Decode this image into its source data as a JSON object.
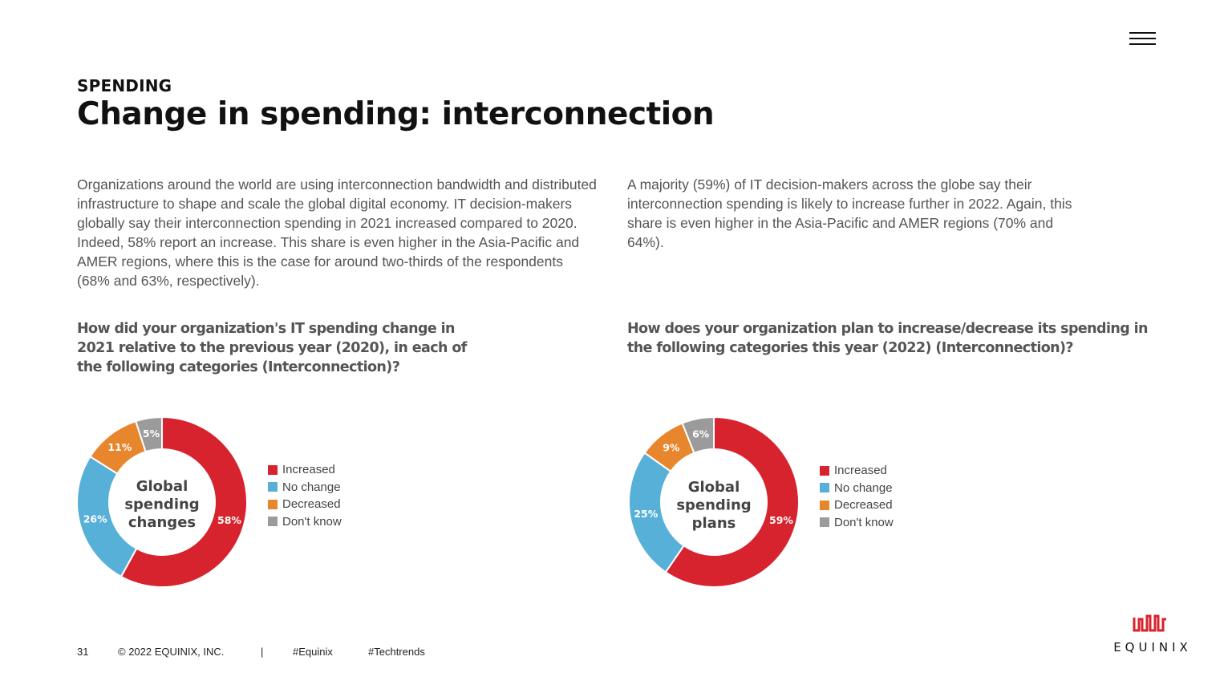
{
  "header": {
    "kicker": "SPENDING",
    "title": "Change in spending: interconnection",
    "menu_icon": "hamburger-icon"
  },
  "paragraphs": [
    "Organizations around the world are using interconnection bandwidth and distributed infrastructure to shape and scale the global digital economy. IT decision-makers globally say their interconnection spending in 2021 increased compared to 2020. Indeed, 58% report an increase. This share is even higher in the Asia-Pacific and AMER regions, where this is the case for around two-thirds of the respondents (68% and 63%, respectively).",
    "A majority (59%) of IT decision-makers across the globe say their interconnection spending is likely to increase further in 2022. Again, this share is even higher in the Asia-Pacific and AMER regions (70% and 64%)."
  ],
  "questions": [
    "How did your organization's IT spending change in 2021 relative to the previous year (2020), in each of the following categories (Interconnection)?",
    "How does your organization plan to increase/decrease its spending in the following categories this year (2022) (Interconnection)?"
  ],
  "colors": {
    "Increased": "#d7232e",
    "No change": "#57b0d8",
    "Decreased": "#e8862d",
    "Don't know": "#9b9b9b"
  },
  "chart_data": [
    {
      "type": "pie",
      "subtype": "donut",
      "title": "Global spending changes",
      "categories": [
        "Increased",
        "No change",
        "Decreased",
        "Don't know"
      ],
      "values": [
        58,
        26,
        11,
        5
      ],
      "labels": [
        "58%",
        "26%",
        "11%",
        "5%"
      ],
      "legend": "right"
    },
    {
      "type": "pie",
      "subtype": "donut",
      "title": "Global spending plans",
      "categories": [
        "Increased",
        "No change",
        "Decreased",
        "Don't know"
      ],
      "values": [
        59,
        25,
        9,
        6
      ],
      "labels": [
        "59%",
        "25%",
        "9%",
        "6%"
      ],
      "legend": "right"
    }
  ],
  "footer": {
    "page": "31",
    "copyright": "© 2022 EQUINIX, INC.",
    "separator": "|",
    "tag1": "#Equinix",
    "tag2": "#Techtrends"
  },
  "logo": {
    "text": "EQUINIX"
  }
}
